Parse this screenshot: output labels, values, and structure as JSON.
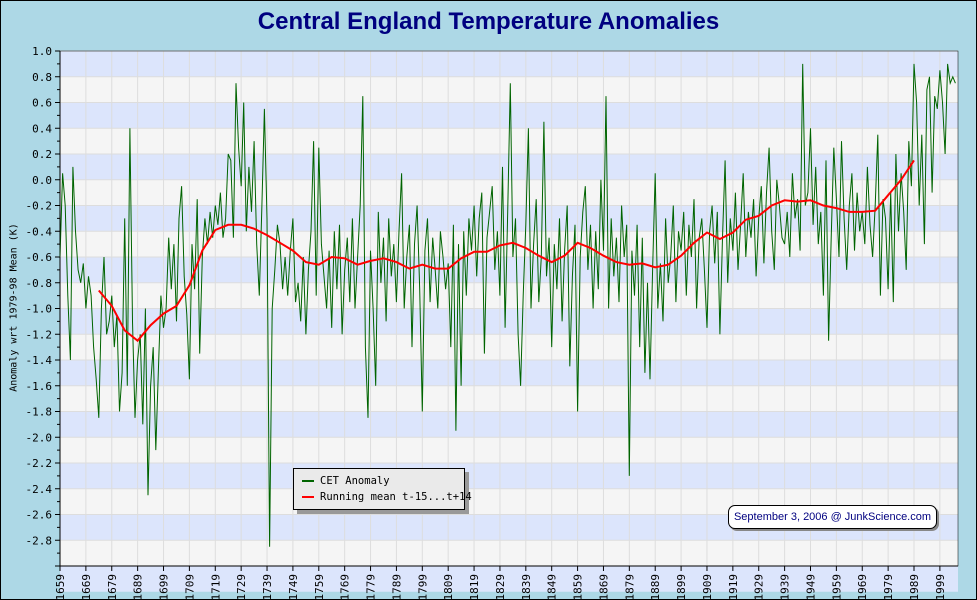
{
  "chart_data": {
    "type": "line",
    "title": "Central England Temperature Anomalies",
    "xlabel": "",
    "ylabel": "Anomaly wrt 1979-98 Mean (K)",
    "xlim": [
      1659,
      2006
    ],
    "ylim": [
      -3.0,
      1.0
    ],
    "grid": true,
    "legend_position": "bottom-center",
    "x_ticks": [
      "1659",
      "1669",
      "1679",
      "1689",
      "1699",
      "1709",
      "1719",
      "1729",
      "1739",
      "1749",
      "1759",
      "1769",
      "1779",
      "1789",
      "1799",
      "1809",
      "1819",
      "1829",
      "1839",
      "1849",
      "1859",
      "1869",
      "1879",
      "1889",
      "1899",
      "1909",
      "1919",
      "1929",
      "1939",
      "1949",
      "1959",
      "1969",
      "1979",
      "1989",
      "1999"
    ],
    "y_ticks": [
      "1.0",
      "0.8",
      "0.6",
      "0.4",
      "0.2",
      "0.0",
      "-0.2",
      "-0.4",
      "-0.6",
      "-0.8",
      "-1.0",
      "-1.2",
      "-1.4",
      "-1.6",
      "-1.8",
      "-2.0",
      "-2.2",
      "-2.4",
      "-2.6",
      "-2.8"
    ],
    "series": [
      {
        "name": "CET Anomaly",
        "color": "#006400",
        "start_year": 1659,
        "values": [
          -0.6,
          0.05,
          -0.2,
          -0.9,
          -1.4,
          0.1,
          -0.4,
          -0.7,
          -0.8,
          -0.65,
          -1.0,
          -0.75,
          -0.9,
          -1.3,
          -1.55,
          -1.85,
          -1.0,
          -0.6,
          -1.2,
          -1.1,
          -0.9,
          -1.3,
          -1.05,
          -1.8,
          -1.5,
          -0.3,
          -1.6,
          0.4,
          -1.1,
          -1.85,
          -1.4,
          -1.2,
          -1.9,
          -1.0,
          -2.45,
          -1.6,
          -1.3,
          -2.1,
          -1.5,
          -0.9,
          -1.15,
          -1.0,
          -0.45,
          -0.85,
          -0.5,
          -1.1,
          -0.3,
          -0.05,
          -0.75,
          -1.05,
          -1.55,
          -0.5,
          -0.85,
          -0.15,
          -1.35,
          -0.6,
          -0.3,
          -0.5,
          -0.25,
          -0.45,
          -0.2,
          -0.35,
          -0.1,
          -0.45,
          -0.3,
          0.2,
          0.15,
          -0.45,
          0.75,
          0.25,
          -0.05,
          0.6,
          -0.4,
          0.1,
          -0.25,
          0.3,
          -0.5,
          -0.9,
          -0.2,
          0.55,
          -0.3,
          -2.85,
          -1.0,
          -0.7,
          -0.35,
          -0.5,
          -0.85,
          -0.6,
          -0.9,
          -0.55,
          -0.3,
          -0.95,
          -0.8,
          -1.1,
          -0.6,
          -1.2,
          -0.7,
          -0.4,
          0.3,
          -0.9,
          0.25,
          -0.5,
          -0.75,
          -1.0,
          -0.55,
          -1.15,
          -0.4,
          -0.85,
          -0.35,
          -1.2,
          -0.7,
          -0.45,
          -0.95,
          -0.3,
          -1.0,
          -0.6,
          -0.2,
          0.65,
          -1.3,
          -1.85,
          -0.55,
          -1.0,
          -1.6,
          -0.25,
          -0.8,
          -0.45,
          -1.1,
          -0.3,
          -0.75,
          -0.5,
          -0.95,
          -0.4,
          0.05,
          -1.0,
          -0.6,
          -0.35,
          -1.3,
          -0.5,
          -0.2,
          -0.85,
          -1.8,
          -0.55,
          -0.3,
          -0.95,
          -0.45,
          -0.7,
          -1.0,
          -0.4,
          -0.6,
          -0.85,
          -0.65,
          -1.3,
          -0.35,
          -1.95,
          -0.5,
          -1.6,
          -0.4,
          -0.9,
          -0.3,
          -0.55,
          -0.2,
          -0.75,
          -0.3,
          -0.1,
          -1.35,
          -0.45,
          -0.25,
          -0.05,
          -0.7,
          -0.4,
          -0.9,
          0.1,
          -1.15,
          -0.25,
          0.75,
          -0.6,
          -0.3,
          -1.2,
          -1.6,
          -0.9,
          -0.35,
          0.4,
          -1.0,
          -0.5,
          -0.15,
          -0.95,
          -0.6,
          0.45,
          -0.75,
          -0.45,
          -1.3,
          -0.5,
          -0.85,
          -0.3,
          -1.1,
          -0.55,
          -0.2,
          -1.45,
          -0.75,
          -0.35,
          -1.8,
          -0.6,
          -0.25,
          -0.05,
          -0.7,
          -0.35,
          -1.0,
          -0.4,
          -0.85,
          0.0,
          -0.55,
          0.65,
          -1.0,
          -0.3,
          -0.75,
          -0.45,
          -0.95,
          -0.2,
          -0.6,
          -0.35,
          -2.3,
          -0.55,
          -0.9,
          -0.35,
          -1.3,
          -0.45,
          -1.5,
          -0.8,
          -1.55,
          -0.7,
          0.05,
          -1.0,
          -0.65,
          -1.1,
          -0.3,
          -0.8,
          -0.6,
          -0.2,
          -0.95,
          -0.4,
          -0.55,
          -0.25,
          -0.9,
          -0.35,
          -0.6,
          -0.15,
          -1.0,
          -0.45,
          -0.3,
          -0.7,
          -1.15,
          -0.4,
          -0.2,
          -0.65,
          -0.25,
          -1.2,
          -0.45,
          0.15,
          -0.8,
          -0.3,
          -0.55,
          -0.1,
          -0.7,
          -0.35,
          0.05,
          -0.6,
          -0.25,
          -0.45,
          -0.15,
          -0.75,
          -0.3,
          -0.05,
          -0.65,
          -0.1,
          0.25,
          -0.4,
          -0.7,
          0.0,
          -0.2,
          -0.45,
          -0.5,
          -0.25,
          -0.6,
          0.05,
          -0.3,
          -0.15,
          -0.55,
          0.9,
          -0.2,
          -0.1,
          0.4,
          -0.35,
          0.1,
          -0.5,
          -0.25,
          -0.9,
          0.15,
          -1.25,
          -0.45,
          0.25,
          -0.15,
          -0.6,
          0.3,
          -0.3,
          -0.7,
          -0.2,
          0.05,
          -0.55,
          -0.1,
          -0.4,
          -0.25,
          -0.5,
          0.1,
          -0.35,
          -0.6,
          -0.2,
          0.35,
          -0.9,
          -0.15,
          -0.3,
          -0.85,
          -0.1,
          -0.95,
          0.2,
          -0.4,
          0.05,
          -0.25,
          -0.7,
          0.3,
          -0.05,
          0.9,
          0.6,
          -0.2,
          0.35,
          -0.5,
          0.7,
          0.8,
          -0.1,
          0.65,
          0.55,
          0.85,
          0.6,
          0.2,
          0.9,
          0.75,
          0.8,
          0.75
        ]
      },
      {
        "name": "Running mean t-15...t+14",
        "color": "#ff0000",
        "x": [
          1674,
          1679,
          1684,
          1689,
          1694,
          1699,
          1704,
          1709,
          1714,
          1719,
          1724,
          1729,
          1734,
          1739,
          1744,
          1749,
          1754,
          1759,
          1764,
          1769,
          1774,
          1779,
          1784,
          1789,
          1794,
          1799,
          1804,
          1809,
          1814,
          1819,
          1824,
          1829,
          1834,
          1839,
          1844,
          1849,
          1854,
          1859,
          1864,
          1869,
          1874,
          1879,
          1884,
          1889,
          1894,
          1899,
          1904,
          1909,
          1914,
          1919,
          1924,
          1929,
          1934,
          1939,
          1944,
          1949,
          1954,
          1959,
          1964,
          1969,
          1974,
          1979,
          1984,
          1989
        ],
        "values": [
          -0.86,
          -0.98,
          -1.17,
          -1.25,
          -1.13,
          -1.04,
          -0.98,
          -0.82,
          -0.55,
          -0.39,
          -0.35,
          -0.35,
          -0.38,
          -0.43,
          -0.49,
          -0.55,
          -0.64,
          -0.66,
          -0.6,
          -0.61,
          -0.66,
          -0.63,
          -0.61,
          -0.64,
          -0.69,
          -0.66,
          -0.69,
          -0.69,
          -0.61,
          -0.56,
          -0.56,
          -0.51,
          -0.49,
          -0.53,
          -0.59,
          -0.64,
          -0.59,
          -0.49,
          -0.53,
          -0.59,
          -0.64,
          -0.66,
          -0.65,
          -0.68,
          -0.66,
          -0.59,
          -0.49,
          -0.41,
          -0.46,
          -0.41,
          -0.31,
          -0.28,
          -0.2,
          -0.16,
          -0.17,
          -0.16,
          -0.2,
          -0.22,
          -0.25,
          -0.25,
          -0.24,
          -0.12,
          0.0,
          0.15
        ]
      }
    ],
    "legend": [
      "CET Anomaly",
      "Running mean t-15...t+14"
    ],
    "annotation": "September 3, 2006 @ JunkScience.com"
  }
}
